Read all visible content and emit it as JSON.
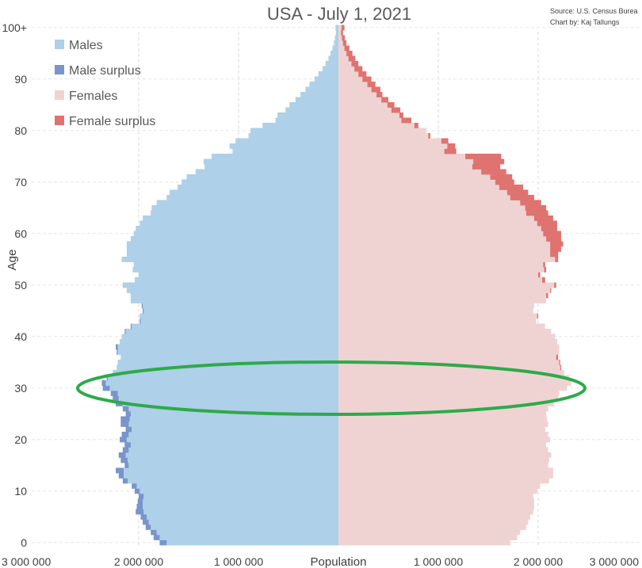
{
  "chart_data": {
    "type": "bar",
    "orientation": "horizontal-pyramid",
    "title": "USA - July 1, 2021",
    "source": "Source: U.S. Census Burea",
    "credit": "Chart by: Kaj Tallungs",
    "xlabel": "Population",
    "ylabel": "Age",
    "xlim": [
      -3000000,
      3000000
    ],
    "x_ticks": [
      "3 000 000",
      "2 000 000",
      "1 000 000",
      "Population",
      "1 000 000",
      "2 000 000",
      "3 000 000"
    ],
    "y_ticks": [
      "0",
      "10",
      "20",
      "30",
      "40",
      "50",
      "60",
      "70",
      "80",
      "90",
      "100+"
    ],
    "grid": "vertical-dashed",
    "legend_position": "top-left",
    "legend": [
      {
        "name": "Males",
        "color": "#aed0e8"
      },
      {
        "name": "Male surplus",
        "color": "#7895cc"
      },
      {
        "name": "Females",
        "color": "#efd3d2"
      },
      {
        "name": "Female surplus",
        "color": "#df7370"
      }
    ],
    "colors": {
      "males": "#aed0e8",
      "male_surplus": "#7895cc",
      "females": "#efd3d2",
      "female_surplus": "#df7370",
      "highlight": "#2eaa4a"
    },
    "ages": [
      "0",
      "1",
      "2",
      "3",
      "4",
      "5",
      "6",
      "7",
      "8",
      "9",
      "10",
      "11",
      "12",
      "13",
      "14",
      "15",
      "16",
      "17",
      "18",
      "19",
      "20",
      "21",
      "22",
      "23",
      "24",
      "25",
      "26",
      "27",
      "28",
      "29",
      "30",
      "31",
      "32",
      "33",
      "34",
      "35",
      "36",
      "37",
      "38",
      "39",
      "40",
      "41",
      "42",
      "43",
      "44",
      "45",
      "46",
      "47",
      "48",
      "49",
      "50",
      "51",
      "52",
      "53",
      "54",
      "55",
      "56",
      "57",
      "58",
      "59",
      "60",
      "61",
      "62",
      "63",
      "64",
      "65",
      "66",
      "67",
      "68",
      "69",
      "70",
      "71",
      "72",
      "73",
      "74",
      "75",
      "76",
      "77",
      "78",
      "79",
      "80",
      "81",
      "82",
      "83",
      "84",
      "85",
      "86",
      "87",
      "88",
      "89",
      "90",
      "91",
      "92",
      "93",
      "94",
      "95",
      "96",
      "97",
      "98",
      "99",
      "100+"
    ],
    "males": [
      1790000,
      1850000,
      1880000,
      1930000,
      1960000,
      1980000,
      2030000,
      2020000,
      2010000,
      2000000,
      2040000,
      2070000,
      2160000,
      2200000,
      2230000,
      2140000,
      2180000,
      2200000,
      2160000,
      2140000,
      2190000,
      2170000,
      2130000,
      2180000,
      2180000,
      2130000,
      2160000,
      2230000,
      2260000,
      2280000,
      2360000,
      2370000,
      2320000,
      2260000,
      2220000,
      2210000,
      2180000,
      2220000,
      2230000,
      2190000,
      2170000,
      2140000,
      2080000,
      1990000,
      1990000,
      1960000,
      1970000,
      2080000,
      2080000,
      2120000,
      2160000,
      2040000,
      2000000,
      2060000,
      2050000,
      2170000,
      2120000,
      2120000,
      2120000,
      2080000,
      2050000,
      2030000,
      1990000,
      1960000,
      1880000,
      1870000,
      1820000,
      1720000,
      1690000,
      1610000,
      1570000,
      1520000,
      1430000,
      1340000,
      1350000,
      1270000,
      1060000,
      1090000,
      1030000,
      900000,
      880000,
      760000,
      630000,
      610000,
      530000,
      490000,
      430000,
      380000,
      330000,
      290000,
      240000,
      200000,
      160000,
      130000,
      100000,
      80000,
      60000,
      45000,
      35000,
      25000,
      30000
    ],
    "females": [
      1720000,
      1790000,
      1820000,
      1880000,
      1900000,
      1920000,
      1950000,
      1960000,
      1960000,
      1950000,
      1990000,
      2020000,
      2110000,
      2150000,
      2150000,
      2100000,
      2110000,
      2130000,
      2100000,
      2080000,
      2120000,
      2100000,
      2070000,
      2100000,
      2090000,
      2080000,
      2100000,
      2160000,
      2200000,
      2210000,
      2290000,
      2330000,
      2310000,
      2260000,
      2230000,
      2220000,
      2200000,
      2210000,
      2210000,
      2190000,
      2170000,
      2130000,
      2070000,
      1980000,
      2000000,
      1950000,
      1960000,
      2080000,
      2100000,
      2130000,
      2180000,
      2070000,
      2020000,
      2080000,
      2070000,
      2200000,
      2200000,
      2230000,
      2250000,
      2230000,
      2230000,
      2190000,
      2190000,
      2150000,
      2100000,
      2080000,
      2030000,
      1960000,
      1900000,
      1850000,
      1760000,
      1740000,
      1680000,
      1620000,
      1660000,
      1630000,
      1180000,
      1170000,
      1100000,
      920000,
      880000,
      800000,
      730000,
      650000,
      620000,
      560000,
      500000,
      440000,
      420000,
      370000,
      330000,
      280000,
      240000,
      200000,
      170000,
      140000,
      110000,
      80000,
      65000,
      45000,
      60000
    ]
  }
}
